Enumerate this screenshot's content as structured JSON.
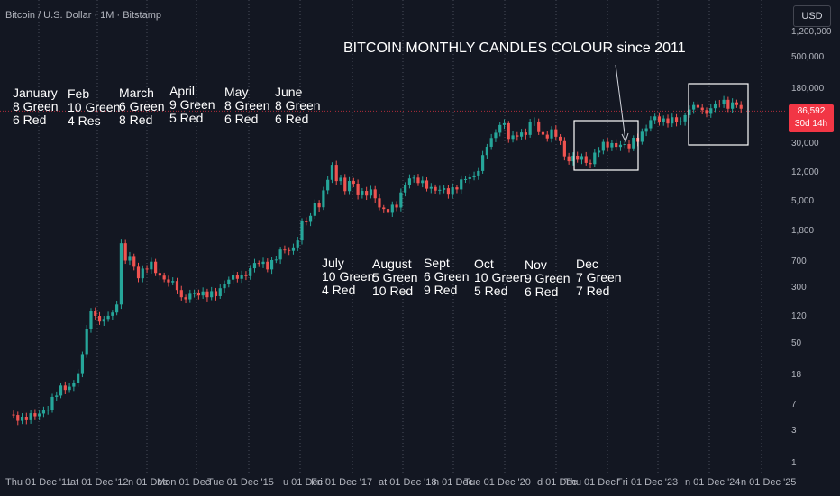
{
  "header": {
    "symbol": "Bitcoin / U.S. Dollar · 1M · Bitstamp",
    "currency_button": "USD"
  },
  "price_tag": {
    "price": "86,592",
    "countdown": "30d 14h",
    "color": "#f23645"
  },
  "colors": {
    "up": "#26a69a",
    "down": "#ef5350",
    "grid_vertical": "#4a4e59",
    "background": "#131722"
  },
  "chart_data": {
    "type": "candlestick",
    "title": "BITCOIN MONTHLY CANDLES COLOUR since 2011",
    "y_scale": "log",
    "y_ticks": [
      "1,200,000",
      "500,000",
      "180,000",
      "75,000",
      "30,000",
      "12,000",
      "5,000",
      "1,800",
      "700",
      "300",
      "120",
      "50",
      "18",
      "7",
      "3",
      "1"
    ],
    "x_ticks": [
      "Thu 01 Dec '11",
      "at 01 Dec '12",
      "n 01 Dec",
      "Mon 01 Dec",
      "Tue 01 Dec '15",
      "u 01 Dec '",
      "Fri 01 Dec '17",
      "at 01 Dec '18",
      "n 01 Dec",
      "Tue 01 Dec '20",
      "d 01 Dec",
      "Thu 01 Dec '",
      "Fri 01 Dec '23",
      "n 01 Dec '24",
      "n 01 Dec '25"
    ],
    "series_close": [
      [
        "2011-09",
        5
      ],
      [
        "2011-12",
        4.7
      ],
      [
        "2012-03",
        5
      ],
      [
        "2012-06",
        6.7
      ],
      [
        "2012-09",
        12.4
      ],
      [
        "2012-12",
        13.5
      ],
      [
        "2013-01",
        20
      ],
      [
        "2013-02",
        33
      ],
      [
        "2013-03",
        93
      ],
      [
        "2013-04",
        139
      ],
      [
        "2013-05",
        129
      ],
      [
        "2013-06",
        97
      ],
      [
        "2013-07",
        106
      ],
      [
        "2013-08",
        135
      ],
      [
        "2013-09",
        133
      ],
      [
        "2013-10",
        198
      ],
      [
        "2013-11",
        1130
      ],
      [
        "2013-12",
        732
      ],
      [
        "2014-01",
        830
      ],
      [
        "2014-03",
        450
      ],
      [
        "2014-06",
        640
      ],
      [
        "2014-09",
        386
      ],
      [
        "2014-12",
        320
      ],
      [
        "2015-01",
        217
      ],
      [
        "2015-06",
        263
      ],
      [
        "2015-09",
        236
      ],
      [
        "2015-12",
        430
      ],
      [
        "2016-03",
        416
      ],
      [
        "2016-06",
        673
      ],
      [
        "2016-09",
        608
      ],
      [
        "2016-12",
        963
      ],
      [
        "2017-01",
        970
      ],
      [
        "2017-03",
        1080
      ],
      [
        "2017-05",
        2300
      ],
      [
        "2017-07",
        2850
      ],
      [
        "2017-08",
        4700
      ],
      [
        "2017-09",
        4340
      ],
      [
        "2017-10",
        6450
      ],
      [
        "2017-11",
        10000
      ],
      [
        "2017-12",
        13800
      ],
      [
        "2018-01",
        10200
      ],
      [
        "2018-02",
        10300
      ],
      [
        "2018-03",
        6900
      ],
      [
        "2018-04",
        9200
      ],
      [
        "2018-06",
        6400
      ],
      [
        "2018-09",
        6600
      ],
      [
        "2018-11",
        4000
      ],
      [
        "2018-12",
        3700
      ],
      [
        "2019-03",
        4100
      ],
      [
        "2019-05",
        8500
      ],
      [
        "2019-06",
        10800
      ],
      [
        "2019-09",
        8300
      ],
      [
        "2019-12",
        7200
      ],
      [
        "2020-03",
        6400
      ],
      [
        "2020-06",
        9100
      ],
      [
        "2020-09",
        10800
      ],
      [
        "2020-11",
        19700
      ],
      [
        "2020-12",
        29000
      ],
      [
        "2021-01",
        33100
      ],
      [
        "2021-02",
        45200
      ],
      [
        "2021-03",
        58800
      ],
      [
        "2021-04",
        57700
      ],
      [
        "2021-05",
        37300
      ],
      [
        "2021-06",
        35000
      ],
      [
        "2021-07",
        41500
      ],
      [
        "2021-09",
        43800
      ],
      [
        "2021-10",
        61300
      ],
      [
        "2021-11",
        57000
      ],
      [
        "2021-12",
        46300
      ],
      [
        "2022-01",
        38500
      ],
      [
        "2022-03",
        45500
      ],
      [
        "2022-05",
        31800
      ],
      [
        "2022-06",
        19900
      ],
      [
        "2022-09",
        19400
      ],
      [
        "2022-11",
        17200
      ],
      [
        "2022-12",
        16500
      ],
      [
        "2023-01",
        23100
      ],
      [
        "2023-03",
        28500
      ],
      [
        "2023-06",
        30500
      ],
      [
        "2023-09",
        27000
      ],
      [
        "2023-10",
        34600
      ],
      [
        "2023-11",
        37700
      ],
      [
        "2023-12",
        42300
      ],
      [
        "2024-02",
        61100
      ],
      [
        "2024-03",
        71300
      ],
      [
        "2024-06",
        62700
      ],
      [
        "2024-09",
        63300
      ],
      [
        "2024-11",
        96400
      ],
      [
        "2024-12",
        93400
      ],
      [
        "2025-01",
        102400
      ],
      [
        "2025-02",
        84300
      ],
      [
        "2025-04",
        94200
      ],
      [
        "2025-05",
        104600
      ],
      [
        "2025-07",
        115700
      ],
      [
        "2025-08",
        108300
      ],
      [
        "2025-10",
        109500
      ],
      [
        "2025-11",
        86592
      ]
    ],
    "annotations": {
      "top_row": [
        {
          "month": "January",
          "line1": "8 Green",
          "line2": "6 Red"
        },
        {
          "month": "Feb",
          "line1": "10 Green",
          "line2": "4 Res"
        },
        {
          "month": "March",
          "line1": "6 Green",
          "line2": "8 Red"
        },
        {
          "month": "April",
          "line1": "9 Green",
          "line2": "5 Red"
        },
        {
          "month": "May",
          "line1": "8 Green",
          "line2": "6 Red"
        },
        {
          "month": "June",
          "line1": "8 Green",
          "line2": "6 Red"
        }
      ],
      "bottom_row": [
        {
          "month": "July",
          "line1": "10 Green",
          "line2": "4 Red"
        },
        {
          "month": "August",
          "line1": "5 Green",
          "line2": "10 Red"
        },
        {
          "month": "Sept",
          "line1": "6 Green",
          "line2": "9 Red"
        },
        {
          "month": "Oct",
          "line1": "10 Green",
          "line2": "5 Red"
        },
        {
          "month": "Nov",
          "line1": "9 Green",
          "line2": "6 Red"
        },
        {
          "month": "Dec",
          "line1": "7 Green",
          "line2": "7 Red"
        }
      ]
    }
  }
}
